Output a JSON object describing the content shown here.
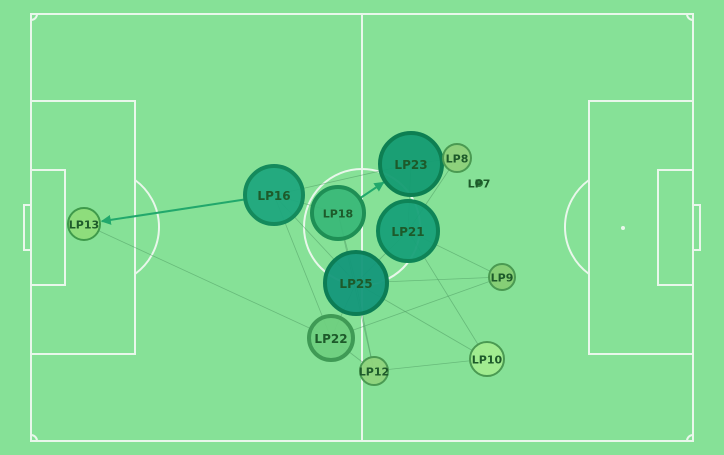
{
  "colors": {
    "pitch": "#86e197",
    "lines": "#e9f7eb",
    "edge": "#4f9a62",
    "edge_highlight": "#22a86c",
    "label": "#1d5a2a"
  },
  "players": [
    {
      "id": "LP13",
      "label": "LP13",
      "fill": "#8edc7a",
      "stroke": "#3f9a4b"
    },
    {
      "id": "LP16",
      "label": "LP16",
      "fill": "#1fa77d",
      "stroke": "#148a5c"
    },
    {
      "id": "LP18",
      "label": "LP18",
      "fill": "#3ab878",
      "stroke": "#1e8f55"
    },
    {
      "id": "LP23",
      "label": "LP23",
      "fill": "#149b72",
      "stroke": "#0d7f52"
    },
    {
      "id": "LP8",
      "label": "LP8",
      "fill": "#8ed07a",
      "stroke": "#4a9a52"
    },
    {
      "id": "LP7",
      "label": "LP7",
      "fill": "#2c7a3c",
      "stroke": "#2c7a3c"
    },
    {
      "id": "LP21",
      "label": "LP21",
      "fill": "#17a078",
      "stroke": "#0e8457"
    },
    {
      "id": "LP25",
      "label": "LP25",
      "fill": "#14977a",
      "stroke": "#0c7d55"
    },
    {
      "id": "LP9",
      "label": "LP9",
      "fill": "#86cd74",
      "stroke": "#4a9a52"
    },
    {
      "id": "LP22",
      "label": "LP22",
      "fill": "#6fcf80",
      "stroke": "#3f9a55"
    },
    {
      "id": "LP12",
      "label": "LP12",
      "fill": "#8fd37c",
      "stroke": "#4a9a52"
    },
    {
      "id": "LP10",
      "label": "LP10",
      "fill": "#a2ec8f",
      "stroke": "#4a9a52"
    }
  ],
  "passes": [
    {
      "from": "LP16",
      "to": "LP13",
      "highlight": true
    },
    {
      "from": "LP18",
      "to": "LP23",
      "highlight": true
    },
    {
      "from": "LP13",
      "to": "LP22"
    },
    {
      "from": "LP16",
      "to": "LP22"
    },
    {
      "from": "LP16",
      "to": "LP25"
    },
    {
      "from": "LP16",
      "to": "LP23"
    },
    {
      "from": "LP16",
      "to": "LP18"
    },
    {
      "from": "LP18",
      "to": "LP12"
    },
    {
      "from": "LP18",
      "to": "LP25"
    },
    {
      "from": "LP25",
      "to": "LP9"
    },
    {
      "from": "LP25",
      "to": "LP12"
    },
    {
      "from": "LP25",
      "to": "LP22"
    },
    {
      "from": "LP22",
      "to": "LP9"
    },
    {
      "from": "LP22",
      "to": "LP12"
    },
    {
      "from": "LP21",
      "to": "LP9"
    },
    {
      "from": "LP21",
      "to": "LP10"
    },
    {
      "from": "LP21",
      "to": "LP25"
    },
    {
      "from": "LP23",
      "to": "LP21"
    },
    {
      "from": "LP23",
      "to": "LP8"
    },
    {
      "from": "LP8",
      "to": "LP21"
    },
    {
      "from": "LP12",
      "to": "LP10"
    },
    {
      "from": "LP25",
      "to": "LP10"
    }
  ]
}
